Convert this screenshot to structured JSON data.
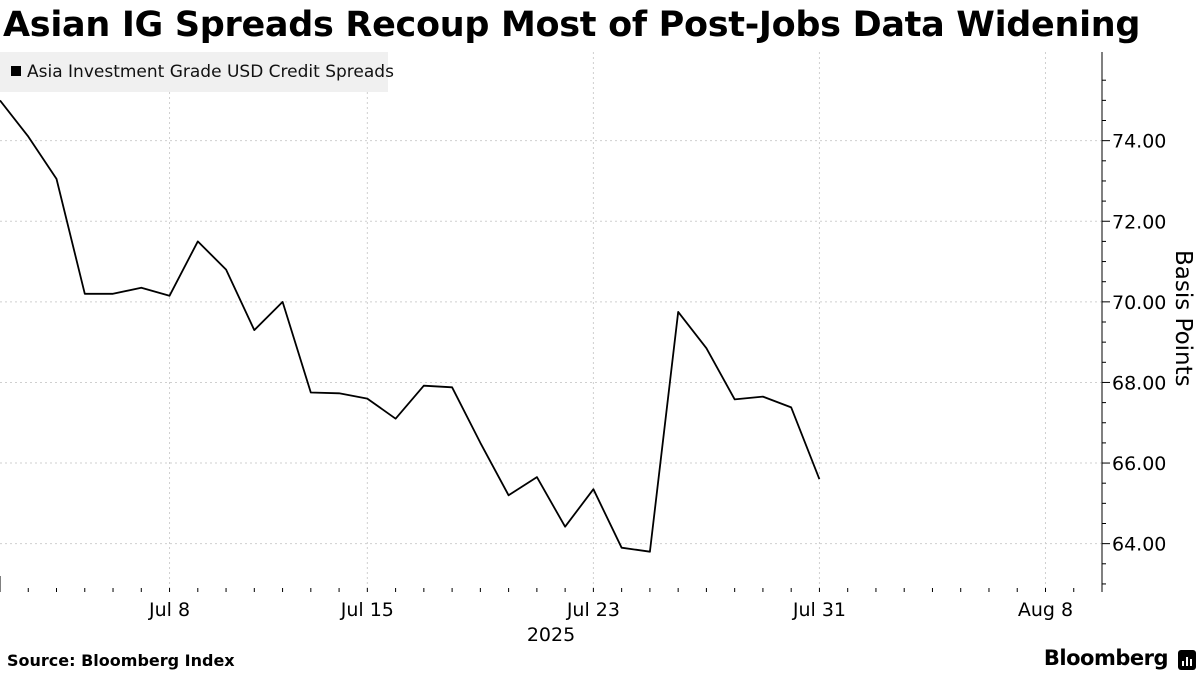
{
  "chart_data": {
    "type": "line",
    "title": "Asian IG Spreads Recoup Most of Post-Jobs Data Widening",
    "ylabel": "Basis Points",
    "year_label": "2025",
    "source": "Source: Bloomberg Index",
    "brand": "Bloomberg",
    "ylim": [
      62.8,
      76.2
    ],
    "y_ticks": [
      64,
      66,
      68,
      70,
      72,
      74
    ],
    "y_tick_labels": [
      "64.00",
      "66.00",
      "68.00",
      "70.00",
      "72.00",
      "74.00"
    ],
    "x_ticks": [
      {
        "label": "Jul 8",
        "date": "2025-07-08"
      },
      {
        "label": "Jul 15",
        "date": "2025-07-15"
      },
      {
        "label": "Jul 23",
        "date": "2025-07-23"
      },
      {
        "label": "Jul 31",
        "date": "2025-07-31"
      },
      {
        "label": "Aug 8",
        "date": "2025-08-08"
      }
    ],
    "xlim": [
      "2025-07-02",
      "2025-08-10"
    ],
    "grid": true,
    "legend_position": "top-left",
    "color": "#000000",
    "series": [
      {
        "name": "Asia Investment Grade USD Credit Spreads",
        "points": [
          {
            "x": "2025-07-02",
            "y": 75.0
          },
          {
            "x": "2025-07-03",
            "y": 74.1
          },
          {
            "x": "2025-07-04",
            "y": 73.05
          },
          {
            "x": "2025-07-05",
            "y": 70.2
          },
          {
            "x": "2025-07-06",
            "y": 70.2
          },
          {
            "x": "2025-07-07",
            "y": 70.35
          },
          {
            "x": "2025-07-08",
            "y": 70.15
          },
          {
            "x": "2025-07-09",
            "y": 71.5
          },
          {
            "x": "2025-07-10",
            "y": 70.8
          },
          {
            "x": "2025-07-11",
            "y": 69.3
          },
          {
            "x": "2025-07-12",
            "y": 70.0
          },
          {
            "x": "2025-07-13",
            "y": 67.75
          },
          {
            "x": "2025-07-14",
            "y": 67.73
          },
          {
            "x": "2025-07-15",
            "y": 67.6
          },
          {
            "x": "2025-07-16",
            "y": 67.1
          },
          {
            "x": "2025-07-17",
            "y": 67.92
          },
          {
            "x": "2025-07-18",
            "y": 67.88
          },
          {
            "x": "2025-07-19",
            "y": 66.5
          },
          {
            "x": "2025-07-20",
            "y": 65.2
          },
          {
            "x": "2025-07-21",
            "y": 65.65
          },
          {
            "x": "2025-07-22",
            "y": 64.42
          },
          {
            "x": "2025-07-23",
            "y": 65.35
          },
          {
            "x": "2025-07-24",
            "y": 63.9
          },
          {
            "x": "2025-07-25",
            "y": 63.8
          },
          {
            "x": "2025-07-26",
            "y": 69.75
          },
          {
            "x": "2025-07-27",
            "y": 68.85
          },
          {
            "x": "2025-07-28",
            "y": 67.58
          },
          {
            "x": "2025-07-29",
            "y": 67.65
          },
          {
            "x": "2025-07-30",
            "y": 67.38
          },
          {
            "x": "2025-07-31",
            "y": 65.6
          }
        ]
      }
    ]
  }
}
